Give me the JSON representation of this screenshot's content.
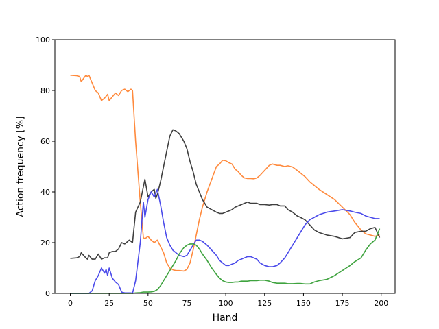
{
  "chart_data": {
    "type": "line",
    "title": "",
    "xlabel": "Hand",
    "ylabel": "Action frequency [%]",
    "xlim": [
      -9.95,
      208.95
    ],
    "ylim": [
      0,
      100
    ],
    "xticks": [
      0,
      25,
      50,
      75,
      100,
      125,
      150,
      175,
      200
    ],
    "yticks": [
      0,
      20,
      40,
      60,
      80,
      100
    ],
    "grid": false,
    "legend": "none",
    "series": [
      {
        "color": "#ff8a3d",
        "x": [
          0,
          4,
          6,
          7,
          10,
          11,
          12,
          14,
          16,
          18,
          20,
          22,
          24,
          25,
          27,
          29,
          31,
          33,
          35,
          37,
          39,
          40,
          42,
          45,
          47,
          48,
          50,
          52,
          54,
          56,
          58,
          60,
          62,
          64,
          66,
          68,
          70,
          73,
          75,
          77,
          79,
          81,
          83,
          85,
          88,
          91,
          94,
          96,
          98,
          100,
          102,
          104,
          106,
          108,
          110,
          112,
          114,
          116,
          118,
          120,
          122,
          125,
          128,
          130,
          133,
          135,
          138,
          140,
          143,
          146,
          148,
          151,
          154,
          157,
          160,
          165,
          170,
          175,
          180,
          183,
          187,
          190,
          193,
          196,
          199
        ],
        "values": [
          86,
          85.8,
          85.5,
          83.5,
          86,
          85.5,
          86,
          83,
          80,
          79,
          76,
          77,
          78.5,
          76,
          77.5,
          79,
          78,
          80,
          80.5,
          79.5,
          80.5,
          80,
          60,
          36,
          22,
          21.5,
          22.5,
          21,
          20,
          21,
          18.5,
          16,
          12,
          10,
          9.3,
          9,
          9,
          8.8,
          9.5,
          12,
          17,
          23,
          29,
          34,
          40,
          45,
          50,
          51,
          52.5,
          52.3,
          51.5,
          51,
          49,
          48,
          46.5,
          45.5,
          45.3,
          45.3,
          45.2,
          45.5,
          46.5,
          48.5,
          50.5,
          51,
          50.5,
          50.5,
          50,
          50.3,
          49.8,
          48.5,
          47.5,
          46,
          44,
          42.5,
          41,
          39,
          37,
          34,
          31,
          28,
          25,
          23.5,
          23,
          22.5,
          23
        ]
      },
      {
        "color": "#3f3f3f",
        "x": [
          0,
          4,
          6,
          7,
          10,
          11,
          12,
          14,
          16,
          18,
          20,
          22,
          24,
          25,
          27,
          29,
          31,
          33,
          35,
          36,
          38,
          40,
          42,
          45,
          47,
          48,
          50,
          52,
          54,
          55,
          56,
          58,
          60,
          62,
          64,
          66,
          68,
          70,
          73,
          75,
          77,
          79,
          81,
          83,
          85,
          88,
          91,
          94,
          96,
          98,
          100,
          102,
          104,
          106,
          108,
          110,
          112,
          114,
          116,
          118,
          120,
          122,
          125,
          128,
          130,
          133,
          135,
          138,
          140,
          143,
          146,
          148,
          151,
          154,
          157,
          160,
          165,
          170,
          175,
          180,
          183,
          187,
          190,
          193,
          196,
          199
        ],
        "values": [
          13.8,
          14,
          14.5,
          16,
          14,
          13.5,
          15,
          13.5,
          13.5,
          15.5,
          13.5,
          14,
          14,
          16,
          16.5,
          16.5,
          17.5,
          20,
          19.5,
          20,
          21,
          20,
          32,
          36,
          42,
          45,
          38,
          40,
          41,
          37.5,
          39,
          44,
          50,
          56,
          62,
          64.5,
          64,
          63,
          60,
          57,
          52,
          48,
          43,
          40,
          37,
          34,
          33,
          32,
          31.5,
          31.5,
          32,
          32.5,
          33,
          34,
          34.5,
          35,
          35.5,
          36,
          35.5,
          35.5,
          35.5,
          35,
          35,
          34.8,
          35,
          35,
          34.5,
          34.5,
          33,
          32,
          30.5,
          30,
          29,
          27,
          25,
          24,
          23,
          22.5,
          21.5,
          22,
          24,
          24.5,
          24.5,
          25.5,
          26,
          22
        ]
      },
      {
        "color": "#4a4aea",
        "x": [
          0,
          4,
          6,
          8,
          10,
          11,
          12,
          14,
          16,
          18,
          20,
          22,
          23,
          24,
          25,
          27,
          29,
          31,
          33,
          35,
          37,
          39,
          40,
          42,
          45,
          47,
          48,
          50,
          52,
          54,
          56,
          58,
          60,
          62,
          64,
          66,
          68,
          70,
          73,
          75,
          77,
          79,
          81,
          83,
          85,
          88,
          91,
          94,
          96,
          98,
          100,
          102,
          104,
          106,
          108,
          110,
          112,
          114,
          116,
          118,
          120,
          122,
          125,
          128,
          130,
          133,
          135,
          138,
          140,
          143,
          146,
          148,
          151,
          154,
          157,
          160,
          165,
          170,
          175,
          180,
          183,
          187,
          190,
          193,
          196,
          199
        ],
        "values": [
          0,
          0,
          0,
          0,
          0,
          0,
          0,
          1,
          5,
          7,
          10,
          8,
          9.5,
          7,
          10,
          6,
          4.5,
          3.5,
          0.5,
          0.2,
          0.2,
          0.2,
          0,
          5,
          20,
          36,
          30,
          37,
          40,
          38,
          41,
          35,
          28,
          22,
          19,
          17,
          16,
          15,
          14.5,
          15,
          17,
          19,
          21,
          21,
          20.5,
          19,
          17,
          15,
          13,
          12,
          11,
          11,
          11.5,
          12,
          13,
          13.5,
          14,
          14.5,
          14.5,
          14,
          13.5,
          12,
          11,
          10.5,
          10.5,
          11,
          12,
          14,
          16,
          19,
          22,
          24,
          27,
          29,
          30,
          31,
          32,
          32.5,
          33,
          32.5,
          32,
          31.5,
          30.5,
          30,
          29.5,
          29.5
        ]
      },
      {
        "color": "#3fa33f",
        "x": [
          0,
          4,
          6,
          8,
          10,
          14,
          18,
          22,
          26,
          30,
          34,
          38,
          40,
          42,
          45,
          47,
          50,
          52,
          54,
          56,
          58,
          60,
          62,
          64,
          66,
          68,
          70,
          73,
          75,
          77,
          79,
          81,
          83,
          85,
          88,
          91,
          94,
          96,
          98,
          100,
          102,
          104,
          106,
          108,
          110,
          112,
          114,
          116,
          118,
          120,
          122,
          125,
          128,
          130,
          133,
          135,
          138,
          140,
          143,
          146,
          148,
          151,
          154,
          157,
          160,
          165,
          170,
          175,
          180,
          183,
          187,
          190,
          193,
          196,
          199
        ],
        "values": [
          0,
          0,
          0,
          0,
          0,
          0,
          0,
          0,
          0,
          0,
          0,
          0,
          0,
          0.2,
          0.3,
          0.5,
          0.5,
          0.6,
          0.8,
          1.5,
          3,
          5,
          7,
          9,
          11,
          13,
          15.5,
          18,
          19,
          19.5,
          19.5,
          19,
          17.5,
          15.5,
          13,
          10,
          7.5,
          6,
          5,
          4.5,
          4.3,
          4.3,
          4.5,
          4.5,
          4.8,
          4.8,
          4.8,
          5,
          5,
          5,
          5.2,
          5.2,
          4.8,
          4.3,
          4,
          4,
          4,
          3.8,
          3.8,
          3.9,
          3.9,
          3.7,
          3.7,
          4.5,
          5,
          5.5,
          7,
          9,
          11,
          12.5,
          14,
          17,
          19.5,
          21,
          25.5
        ]
      }
    ]
  }
}
